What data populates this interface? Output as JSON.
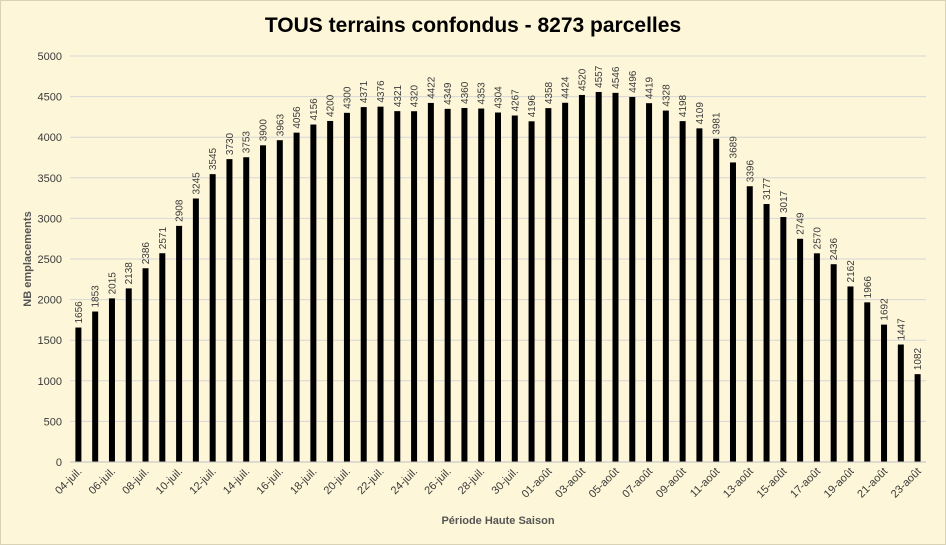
{
  "chart_data": {
    "type": "bar",
    "title": "TOUS terrains confondus - 8273 parcelles",
    "xlabel": "Période Haute Saison",
    "ylabel": "NB emplacements",
    "ylim": [
      0,
      5000
    ],
    "yticks": [
      0,
      500,
      1000,
      1500,
      2000,
      2500,
      3000,
      3500,
      4000,
      4500,
      5000
    ],
    "grid": true,
    "bar_color": "#000000",
    "categories": [
      "04-juil.",
      "05-juil.",
      "06-juil.",
      "07-juil.",
      "08-juil.",
      "09-juil.",
      "10-juil.",
      "11-juil.",
      "12-juil.",
      "13-juil.",
      "14-juil.",
      "15-juil.",
      "16-juil.",
      "17-juil.",
      "18-juil.",
      "19-juil.",
      "20-juil.",
      "21-juil.",
      "22-juil.",
      "23-juil.",
      "24-juil.",
      "25-juil.",
      "26-juil.",
      "27-juil.",
      "28-juil.",
      "29-juil.",
      "30-juil.",
      "31-juil.",
      "01-août",
      "02-août",
      "03-août",
      "04-août",
      "05-août",
      "06-août",
      "07-août",
      "08-août",
      "09-août",
      "10-août",
      "11-août",
      "12-août",
      "13-août",
      "14-août",
      "15-août",
      "16-août",
      "17-août",
      "18-août",
      "19-août",
      "20-août",
      "21-août",
      "22-août",
      "23-août"
    ],
    "visible_xticks": [
      "04-juil.",
      "06-juil.",
      "08-juil.",
      "10-juil.",
      "12-juil.",
      "14-juil.",
      "16-juil.",
      "18-juil.",
      "20-juil.",
      "22-juil.",
      "24-juil.",
      "26-juil.",
      "28-juil.",
      "30-juil.",
      "01-août",
      "03-août",
      "05-août",
      "07-août",
      "09-août",
      "11-août",
      "13-août",
      "15-août",
      "17-août",
      "19-août",
      "21-août",
      "23-août"
    ],
    "values": [
      1656,
      1853,
      2015,
      2138,
      2386,
      2571,
      2908,
      3245,
      3545,
      3730,
      3753,
      3900,
      3963,
      4056,
      4156,
      4200,
      4300,
      4371,
      4376,
      4321,
      4320,
      4422,
      4349,
      4360,
      4353,
      4304,
      4267,
      4196,
      4358,
      4424,
      4520,
      4557,
      4546,
      4496,
      4419,
      4328,
      4198,
      4109,
      3981,
      3689,
      3396,
      3177,
      3017,
      2749,
      2570,
      2436,
      2162,
      1966,
      1692,
      1447,
      1082
    ]
  }
}
